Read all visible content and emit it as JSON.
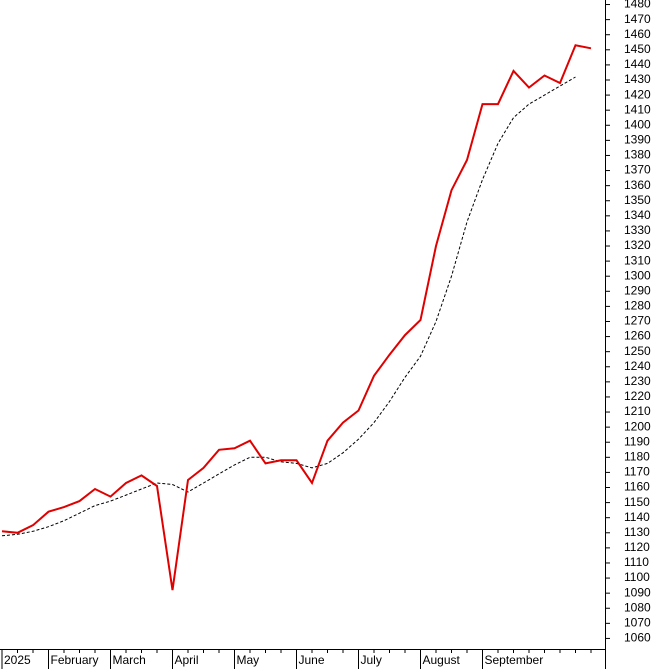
{
  "chart_data": {
    "type": "line",
    "categories": [
      "2025",
      null,
      null,
      "February",
      null,
      null,
      null,
      "March",
      null,
      null,
      null,
      "April",
      null,
      null,
      null,
      "May",
      null,
      null,
      null,
      "June",
      null,
      null,
      null,
      "July",
      null,
      null,
      null,
      "August",
      null,
      null,
      null,
      "September",
      null,
      null,
      null,
      null,
      null,
      null,
      null
    ],
    "series": [
      {
        "color": "#e00000",
        "style": "solid",
        "values": [
          1131,
          1130,
          1135,
          1144,
          1147,
          1151,
          1159,
          1154,
          1163,
          1168,
          1161,
          1092,
          1165,
          1173,
          1185,
          1186,
          1191,
          1176,
          1178,
          1178,
          1163,
          1191,
          1203,
          1211,
          1234,
          1248,
          1261,
          1271,
          1320,
          1357,
          1377,
          1414,
          1414,
          1436,
          1425,
          1433,
          1428,
          1453,
          1451
        ]
      },
      {
        "color": "#000000",
        "style": "dashed",
        "values": [
          1128,
          1129,
          1131,
          1134,
          1138,
          1143,
          1148,
          1151,
          1155,
          1159,
          1163,
          1162,
          1157,
          1163,
          1169,
          1175,
          1180,
          1180,
          1177,
          1176,
          1173,
          1176,
          1183,
          1192,
          1203,
          1217,
          1233,
          1247,
          1270,
          1300,
          1336,
          1364,
          1388,
          1405,
          1414,
          1420,
          1426,
          1432,
          null
        ]
      }
    ],
    "ylim": [
      1053,
      1483
    ],
    "yticks": [
      1060,
      1070,
      1080,
      1090,
      1100,
      1110,
      1120,
      1130,
      1140,
      1150,
      1160,
      1170,
      1180,
      1190,
      1200,
      1210,
      1220,
      1230,
      1240,
      1250,
      1260,
      1270,
      1280,
      1290,
      1300,
      1310,
      1320,
      1330,
      1340,
      1350,
      1360,
      1370,
      1380,
      1390,
      1400,
      1410,
      1420,
      1430,
      1440,
      1450,
      1460,
      1470,
      1480
    ],
    "y_axis_side": "right"
  }
}
